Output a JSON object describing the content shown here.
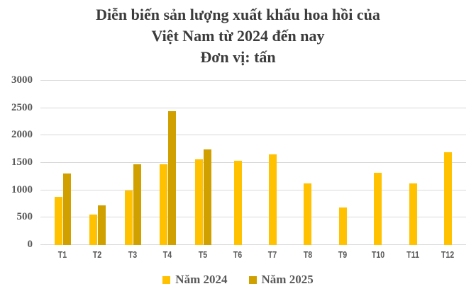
{
  "title": {
    "line1": "Diễn biến sản lượng xuất khẩu hoa hồi của",
    "line2": "Việt Nam từ 2024 đến nay",
    "line3": "Đơn vị: tấn"
  },
  "chart_data": {
    "type": "bar",
    "categories": [
      "T1",
      "T2",
      "T3",
      "T4",
      "T5",
      "T6",
      "T7",
      "T8",
      "T9",
      "T10",
      "T11",
      "T12"
    ],
    "series": [
      {
        "name": "Năm 2024",
        "color": "#FFC100",
        "values": [
          880,
          550,
          1000,
          1480,
          1560,
          1540,
          1650,
          1130,
          690,
          1320,
          1130,
          1690
        ]
      },
      {
        "name": "Năm 2025",
        "color": "#D0A000",
        "values": [
          1300,
          730,
          1470,
          2440,
          1740,
          null,
          null,
          null,
          null,
          null,
          null,
          null
        ]
      }
    ],
    "ylabel": "",
    "xlabel": "",
    "ylim": [
      0,
      3000
    ],
    "yticks": [
      0,
      500,
      1000,
      1500,
      2000,
      2500,
      3000
    ],
    "grid": true,
    "gridline_color": "#D9D9D9",
    "legend_position": "bottom"
  }
}
